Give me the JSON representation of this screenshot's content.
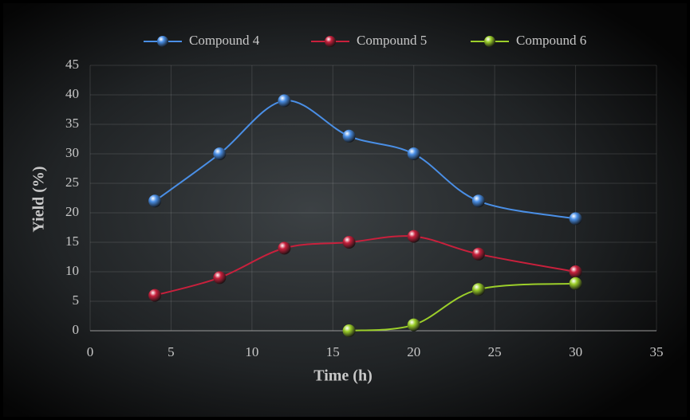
{
  "chart_data": {
    "type": "line",
    "x_label": "Time (h)",
    "y_label": "Yield (%)",
    "x": [
      4,
      8,
      12,
      16,
      20,
      24,
      30
    ],
    "series": [
      {
        "name": "Compound 4",
        "color": "#4a8fe6",
        "values": [
          22,
          30,
          39,
          33,
          30,
          22,
          19
        ]
      },
      {
        "name": "Compound 5",
        "color": "#c8203c",
        "values": [
          6,
          9,
          14,
          15,
          16,
          13,
          10
        ]
      },
      {
        "name": "Compound 6",
        "color": "#9ccf2a",
        "values": [
          null,
          null,
          null,
          0,
          1,
          7,
          8
        ]
      }
    ],
    "xlim": [
      0,
      35
    ],
    "xticks": [
      0,
      5,
      10,
      15,
      20,
      25,
      30,
      35
    ],
    "ylim": [
      0,
      45
    ],
    "yticks": [
      0,
      5,
      10,
      15,
      20,
      25,
      30,
      35,
      40,
      45
    ],
    "grid": true,
    "legend": "top",
    "smooth": true
  }
}
